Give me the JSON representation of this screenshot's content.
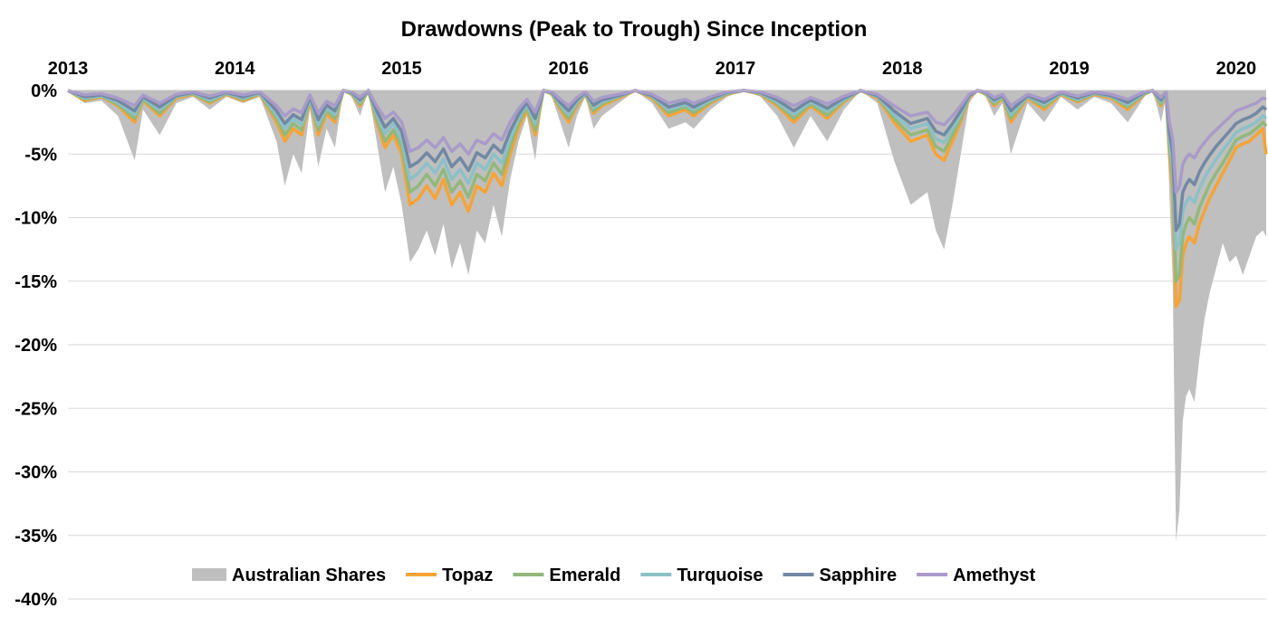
{
  "chart_data": {
    "type": "area",
    "title": "Drawdowns (Peak to Trough) Since Inception",
    "xlabel": "",
    "ylabel": "",
    "x_ticks": [
      "2013",
      "2014",
      "2015",
      "2016",
      "2017",
      "2018",
      "2019",
      "2020"
    ],
    "x_range": [
      2013,
      2020.18
    ],
    "y_ticks": [
      "0%",
      "-5%",
      "-10%",
      "-15%",
      "-20%",
      "-25%",
      "-30%",
      "-35%",
      "-40%"
    ],
    "ylim": [
      -40,
      0
    ],
    "grid": true,
    "legend_position": "bottom",
    "x": [
      2013.0,
      2013.1,
      2013.2,
      2013.3,
      2013.4,
      2013.45,
      2013.55,
      2013.65,
      2013.75,
      2013.85,
      2013.95,
      2014.05,
      2014.15,
      2014.25,
      2014.3,
      2014.35,
      2014.4,
      2014.45,
      2014.5,
      2014.55,
      2014.6,
      2014.65,
      2014.7,
      2014.75,
      2014.8,
      2014.85,
      2014.9,
      2014.95,
      2015.0,
      2015.05,
      2015.1,
      2015.15,
      2015.2,
      2015.25,
      2015.3,
      2015.35,
      2015.4,
      2015.45,
      2015.5,
      2015.55,
      2015.6,
      2015.65,
      2015.7,
      2015.75,
      2015.8,
      2015.85,
      2015.9,
      2015.95,
      2016.0,
      2016.05,
      2016.1,
      2016.15,
      2016.2,
      2016.3,
      2016.4,
      2016.5,
      2016.6,
      2016.7,
      2016.75,
      2016.85,
      2016.95,
      2017.05,
      2017.15,
      2017.25,
      2017.35,
      2017.45,
      2017.55,
      2017.65,
      2017.75,
      2017.85,
      2017.95,
      2018.05,
      2018.15,
      2018.2,
      2018.25,
      2018.3,
      2018.35,
      2018.4,
      2018.45,
      2018.5,
      2018.55,
      2018.6,
      2018.65,
      2018.75,
      2018.85,
      2018.95,
      2019.05,
      2019.15,
      2019.25,
      2019.35,
      2019.45,
      2019.5,
      2019.55,
      2019.58,
      2019.6,
      2019.62,
      2019.64,
      2019.66,
      2019.68,
      2019.7,
      2019.72,
      2019.75,
      2019.78,
      2019.81,
      2019.84,
      2019.88,
      2019.92,
      2019.96,
      2020.0,
      2020.04,
      2020.08,
      2020.12,
      2020.16,
      2020.18
    ],
    "series": [
      {
        "name": "Australian Shares",
        "style": "area",
        "color": "#bfbfbf",
        "values": [
          0.0,
          -1.0,
          -0.8,
          -2.0,
          -5.5,
          -1.5,
          -3.5,
          -1.0,
          -0.5,
          -1.5,
          -0.5,
          -1.0,
          -0.5,
          -4.0,
          -7.5,
          -5.0,
          -6.5,
          -1.5,
          -6.0,
          -3.0,
          -4.5,
          0.0,
          -0.5,
          -2.0,
          0.0,
          -4.0,
          -8.0,
          -6.0,
          -9.0,
          -13.5,
          -12.5,
          -11.0,
          -13.0,
          -10.5,
          -14.0,
          -12.0,
          -14.5,
          -11.0,
          -12.0,
          -9.0,
          -11.5,
          -7.0,
          -4.0,
          -2.0,
          -5.5,
          0.0,
          -0.5,
          -2.5,
          -4.5,
          -2.0,
          -0.5,
          -3.0,
          -2.0,
          -1.0,
          0.0,
          -1.0,
          -3.0,
          -2.5,
          -3.0,
          -1.5,
          -0.5,
          0.0,
          -0.5,
          -2.0,
          -4.5,
          -2.0,
          -4.0,
          -1.5,
          0.0,
          -1.0,
          -5.5,
          -9.0,
          -8.0,
          -11.0,
          -12.5,
          -9.0,
          -5.0,
          -1.0,
          0.0,
          -0.5,
          -2.0,
          -1.0,
          -5.0,
          -1.0,
          -2.5,
          -0.5,
          -1.5,
          -0.5,
          -1.0,
          -2.5,
          -0.5,
          0.0,
          -2.5,
          -0.5,
          -8.0,
          -15.0,
          -35.5,
          -33.0,
          -26.0,
          -24.0,
          -23.5,
          -24.5,
          -21.0,
          -18.0,
          -16.0,
          -14.0,
          -12.0,
          -13.5,
          -13.0,
          -14.5,
          -13.0,
          -11.5,
          -11.0,
          -11.5
        ]
      },
      {
        "name": "Topaz",
        "style": "line",
        "color": "#f7a335",
        "values": [
          0.0,
          -0.8,
          -0.5,
          -1.2,
          -2.5,
          -0.8,
          -2.0,
          -0.6,
          -0.3,
          -1.0,
          -0.3,
          -0.8,
          -0.3,
          -2.5,
          -4.0,
          -3.0,
          -3.5,
          -0.8,
          -3.5,
          -1.8,
          -2.5,
          0.0,
          -0.3,
          -1.2,
          0.0,
          -2.5,
          -4.5,
          -3.5,
          -5.0,
          -9.0,
          -8.5,
          -7.5,
          -8.5,
          -7.0,
          -9.0,
          -8.0,
          -9.5,
          -7.5,
          -8.0,
          -6.5,
          -7.5,
          -5.0,
          -3.0,
          -1.5,
          -3.5,
          0.0,
          -0.3,
          -1.5,
          -2.5,
          -1.2,
          -0.3,
          -1.8,
          -1.2,
          -0.6,
          0.0,
          -0.6,
          -2.0,
          -1.5,
          -2.0,
          -1.0,
          -0.3,
          0.0,
          -0.3,
          -1.2,
          -2.5,
          -1.2,
          -2.2,
          -0.9,
          0.0,
          -0.6,
          -2.5,
          -4.0,
          -3.5,
          -5.0,
          -5.5,
          -4.0,
          -2.5,
          -0.6,
          0.0,
          -0.3,
          -1.2,
          -0.6,
          -2.5,
          -0.6,
          -1.5,
          -0.3,
          -0.9,
          -0.3,
          -0.6,
          -1.5,
          -0.3,
          0.0,
          -1.2,
          -0.3,
          -5.0,
          -8.0,
          -17.0,
          -16.5,
          -13.0,
          -12.0,
          -11.5,
          -12.0,
          -10.5,
          -9.5,
          -8.5,
          -7.5,
          -6.5,
          -5.5,
          -4.5,
          -4.2,
          -4.0,
          -3.5,
          -3.0,
          -5.0
        ]
      },
      {
        "name": "Emerald",
        "style": "line",
        "color": "#93b87b",
        "values": [
          0.0,
          -0.7,
          -0.45,
          -1.1,
          -2.2,
          -0.7,
          -1.8,
          -0.5,
          -0.25,
          -0.9,
          -0.25,
          -0.7,
          -0.25,
          -2.2,
          -3.5,
          -2.6,
          -3.1,
          -0.7,
          -3.1,
          -1.6,
          -2.2,
          0.0,
          -0.25,
          -1.05,
          0.0,
          -2.2,
          -4.0,
          -3.1,
          -4.4,
          -8.0,
          -7.5,
          -6.6,
          -7.5,
          -6.2,
          -8.0,
          -7.1,
          -8.4,
          -6.6,
          -7.1,
          -5.7,
          -6.6,
          -4.4,
          -2.6,
          -1.3,
          -3.1,
          0.0,
          -0.25,
          -1.3,
          -2.2,
          -1.05,
          -0.25,
          -1.6,
          -1.05,
          -0.5,
          0.0,
          -0.5,
          -1.75,
          -1.3,
          -1.75,
          -0.9,
          -0.25,
          0.0,
          -0.25,
          -1.05,
          -2.2,
          -1.05,
          -1.95,
          -0.8,
          0.0,
          -0.5,
          -2.2,
          -3.5,
          -3.1,
          -4.4,
          -4.8,
          -3.5,
          -2.2,
          -0.5,
          0.0,
          -0.25,
          -1.05,
          -0.5,
          -2.2,
          -0.5,
          -1.3,
          -0.25,
          -0.8,
          -0.25,
          -0.5,
          -1.3,
          -0.25,
          0.0,
          -1.05,
          -0.25,
          -4.4,
          -7.0,
          -15.0,
          -14.5,
          -11.4,
          -10.5,
          -10.0,
          -10.5,
          -9.2,
          -8.3,
          -7.4,
          -6.5,
          -5.7,
          -4.8,
          -3.9,
          -3.6,
          -3.4,
          -3.0,
          -2.5,
          -2.8
        ]
      },
      {
        "name": "Turquoise",
        "style": "line",
        "color": "#8cc0c7",
        "values": [
          0.0,
          -0.6,
          -0.4,
          -0.95,
          -1.9,
          -0.6,
          -1.5,
          -0.45,
          -0.2,
          -0.75,
          -0.2,
          -0.6,
          -0.2,
          -1.9,
          -3.0,
          -2.2,
          -2.7,
          -0.6,
          -2.7,
          -1.35,
          -1.9,
          0.0,
          -0.2,
          -0.9,
          0.0,
          -1.9,
          -3.4,
          -2.6,
          -3.8,
          -7.0,
          -6.5,
          -5.7,
          -6.5,
          -5.4,
          -7.0,
          -6.2,
          -7.3,
          -5.7,
          -6.2,
          -5.0,
          -5.7,
          -3.8,
          -2.2,
          -1.1,
          -2.6,
          0.0,
          -0.2,
          -1.1,
          -1.9,
          -0.9,
          -0.2,
          -1.35,
          -0.9,
          -0.45,
          0.0,
          -0.45,
          -1.5,
          -1.1,
          -1.5,
          -0.75,
          -0.2,
          0.0,
          -0.2,
          -0.9,
          -1.9,
          -0.9,
          -1.65,
          -0.7,
          0.0,
          -0.45,
          -1.9,
          -3.0,
          -2.6,
          -3.8,
          -4.1,
          -3.0,
          -1.9,
          -0.45,
          0.0,
          -0.2,
          -0.9,
          -0.45,
          -1.9,
          -0.45,
          -1.1,
          -0.2,
          -0.7,
          -0.2,
          -0.45,
          -1.1,
          -0.2,
          0.0,
          -0.9,
          -0.2,
          -3.8,
          -6.0,
          -12.5,
          -12.0,
          -9.5,
          -8.8,
          -8.4,
          -8.8,
          -7.7,
          -6.9,
          -6.2,
          -5.4,
          -4.7,
          -4.0,
          -3.3,
          -3.0,
          -2.8,
          -2.5,
          -2.0,
          -2.2
        ]
      },
      {
        "name": "Sapphire",
        "style": "line",
        "color": "#7288a3",
        "values": [
          0.0,
          -0.5,
          -0.35,
          -0.8,
          -1.6,
          -0.5,
          -1.3,
          -0.4,
          -0.15,
          -0.6,
          -0.15,
          -0.5,
          -0.15,
          -1.6,
          -2.6,
          -1.9,
          -2.3,
          -0.5,
          -2.3,
          -1.15,
          -1.6,
          0.0,
          -0.15,
          -0.75,
          0.0,
          -1.6,
          -2.9,
          -2.2,
          -3.2,
          -6.0,
          -5.6,
          -4.9,
          -5.6,
          -4.6,
          -6.0,
          -5.3,
          -6.3,
          -4.9,
          -5.3,
          -4.3,
          -4.9,
          -3.2,
          -1.9,
          -0.95,
          -2.2,
          0.0,
          -0.15,
          -0.95,
          -1.6,
          -0.75,
          -0.15,
          -1.15,
          -0.75,
          -0.4,
          0.0,
          -0.4,
          -1.3,
          -0.95,
          -1.3,
          -0.65,
          -0.15,
          0.0,
          -0.15,
          -0.75,
          -1.6,
          -0.75,
          -1.4,
          -0.6,
          0.0,
          -0.4,
          -1.6,
          -2.6,
          -2.2,
          -3.2,
          -3.5,
          -2.6,
          -1.6,
          -0.4,
          0.0,
          -0.15,
          -0.75,
          -0.4,
          -1.6,
          -0.4,
          -0.95,
          -0.15,
          -0.6,
          -0.15,
          -0.4,
          -0.95,
          -0.15,
          0.0,
          -0.75,
          -0.15,
          -3.2,
          -5.0,
          -11.0,
          -10.5,
          -8.0,
          -7.4,
          -7.0,
          -7.4,
          -6.4,
          -5.7,
          -5.1,
          -4.4,
          -3.8,
          -3.2,
          -2.6,
          -2.3,
          -2.1,
          -1.8,
          -1.3,
          -1.5
        ]
      },
      {
        "name": "Amethyst",
        "style": "line",
        "color": "#a99bc9",
        "values": [
          0.0,
          -0.35,
          -0.25,
          -0.6,
          -1.2,
          -0.35,
          -1.0,
          -0.3,
          -0.1,
          -0.45,
          -0.1,
          -0.35,
          -0.1,
          -1.2,
          -2.0,
          -1.45,
          -1.75,
          -0.35,
          -1.75,
          -0.85,
          -1.2,
          0.0,
          -0.1,
          -0.55,
          0.0,
          -1.2,
          -2.2,
          -1.7,
          -2.5,
          -4.8,
          -4.5,
          -3.9,
          -4.5,
          -3.7,
          -4.8,
          -4.2,
          -5.0,
          -3.9,
          -4.2,
          -3.4,
          -3.9,
          -2.5,
          -1.45,
          -0.7,
          -1.7,
          0.0,
          -0.1,
          -0.7,
          -1.2,
          -0.55,
          -0.1,
          -0.85,
          -0.55,
          -0.3,
          0.0,
          -0.3,
          -1.0,
          -0.7,
          -1.0,
          -0.5,
          -0.1,
          0.0,
          -0.1,
          -0.55,
          -1.2,
          -0.55,
          -1.05,
          -0.45,
          0.0,
          -0.3,
          -1.2,
          -2.0,
          -1.7,
          -2.5,
          -2.7,
          -2.0,
          -1.2,
          -0.3,
          0.0,
          -0.1,
          -0.55,
          -0.3,
          -1.2,
          -0.3,
          -0.7,
          -0.1,
          -0.45,
          -0.1,
          -0.3,
          -0.7,
          -0.1,
          0.0,
          -0.55,
          -0.1,
          -2.5,
          -3.8,
          -8.0,
          -7.6,
          -5.8,
          -5.3,
          -5.0,
          -5.3,
          -4.6,
          -4.1,
          -3.6,
          -3.1,
          -2.6,
          -2.1,
          -1.6,
          -1.4,
          -1.2,
          -1.0,
          -0.6,
          -0.7
        ]
      }
    ]
  }
}
